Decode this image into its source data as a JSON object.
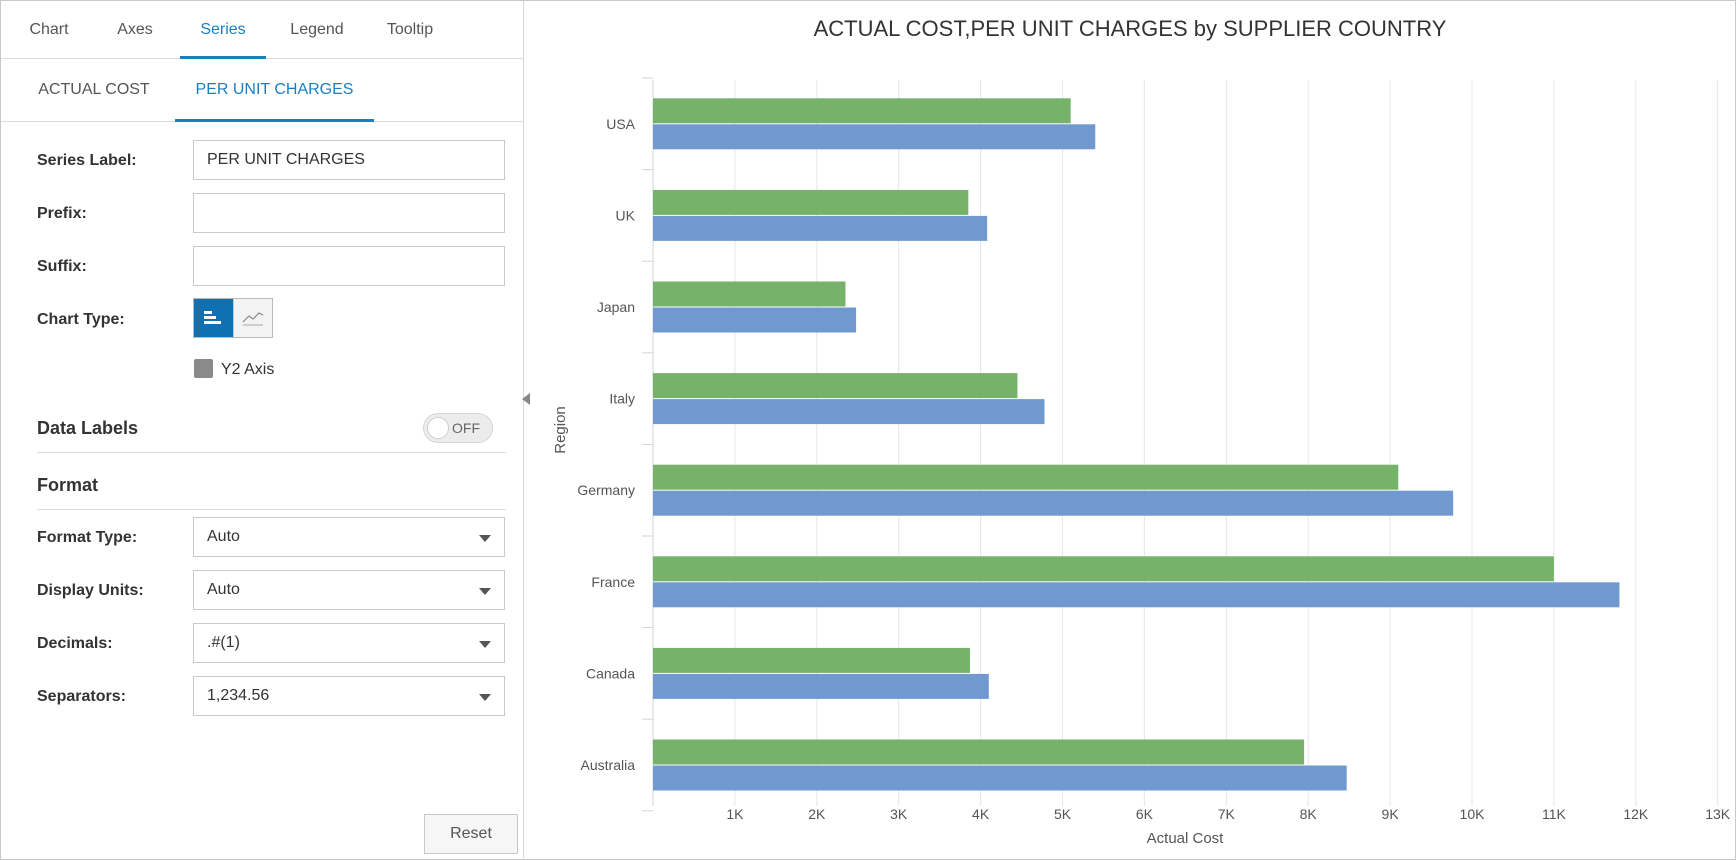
{
  "tabs_primary": [
    {
      "label": "Chart",
      "active": false
    },
    {
      "label": "Axes",
      "active": false
    },
    {
      "label": "Series",
      "active": true
    },
    {
      "label": "Legend",
      "active": false
    },
    {
      "label": "Tooltip",
      "active": false
    }
  ],
  "tabs_series": [
    {
      "label": "ACTUAL COST",
      "active": false
    },
    {
      "label": "PER UNIT CHARGES",
      "active": true
    }
  ],
  "form": {
    "series_label": {
      "label": "Series Label:",
      "value": "PER UNIT CHARGES"
    },
    "prefix": {
      "label": "Prefix:",
      "value": ""
    },
    "suffix": {
      "label": "Suffix:",
      "value": ""
    },
    "chart_type": {
      "label": "Chart Type:",
      "selected": "bar",
      "options": [
        "bar-chart-icon",
        "line-chart-icon"
      ]
    },
    "y2_axis": {
      "label": "Y2 Axis",
      "checked": false
    }
  },
  "data_labels": {
    "title": "Data Labels",
    "toggle_text": "OFF",
    "on": false
  },
  "format": {
    "title": "Format",
    "format_type": {
      "label": "Format Type:",
      "value": "Auto"
    },
    "display_units": {
      "label": "Display Units:",
      "value": "Auto"
    },
    "decimals": {
      "label": "Decimals:",
      "value": ".#(1)"
    },
    "separators": {
      "label": "Separators:",
      "value": "1,234.56"
    }
  },
  "reset_label": "Reset",
  "colors": {
    "accent": "#1a7fc0",
    "series_green": "#77b26a",
    "series_blue": "#7099d0",
    "grid": "#e3e6ea"
  },
  "chart_data": {
    "type": "bar",
    "orientation": "horizontal",
    "title": "ACTUAL COST,PER UNIT CHARGES by SUPPLIER COUNTRY",
    "xlabel": "Actual Cost",
    "ylabel": "Region",
    "categories": [
      "USA",
      "UK",
      "Japan",
      "Italy",
      "Germany",
      "France",
      "Canada",
      "Australia"
    ],
    "series": [
      {
        "values": [
          5100,
          3850,
          2350,
          4450,
          9100,
          11000,
          3870,
          7950
        ],
        "color": "#77b26a"
      },
      {
        "values": [
          5400,
          4080,
          2480,
          4780,
          9770,
          11800,
          4100,
          8470
        ],
        "color": "#7099d0"
      }
    ],
    "xlim": [
      0,
      13000
    ],
    "x_ticks": [
      "1K",
      "2K",
      "3K",
      "4K",
      "5K",
      "6K",
      "7K",
      "8K",
      "9K",
      "10K",
      "11K",
      "12K",
      "13K"
    ],
    "grid": true
  }
}
